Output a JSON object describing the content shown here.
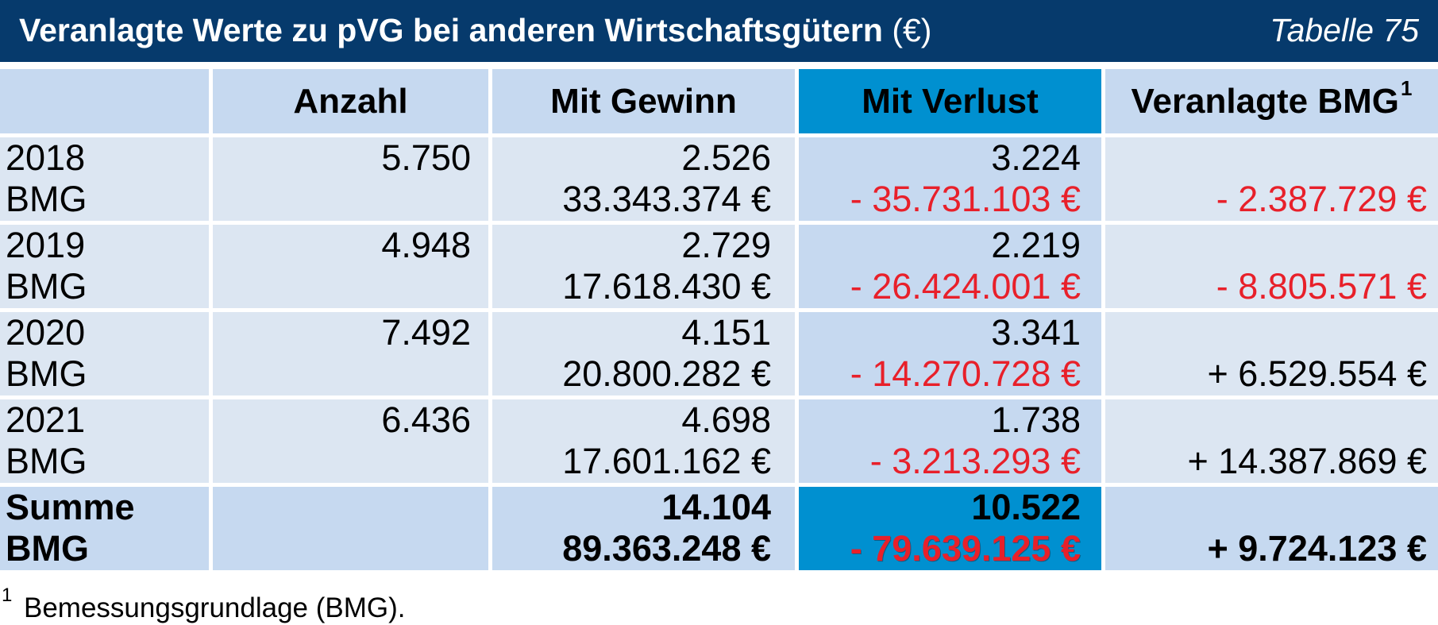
{
  "title": {
    "text": "Veranlagte Werte zu pVG bei anderen Wirtschaftsgütern",
    "unit": "(€)",
    "table_label": "Tabelle 75"
  },
  "colors": {
    "title_bar": "#063a6c",
    "header_cell": "#c6d9f0",
    "body_cell": "#dce6f2",
    "highlight": "#0090d0",
    "negative": "#e8202a"
  },
  "table": {
    "headers": {
      "anzahl": "Anzahl",
      "gewinn": "Mit Gewinn",
      "verlust": "Mit Verlust",
      "bmg": "Veranlagte BMG",
      "bmg_footnote_marker": "1"
    },
    "rows": [
      {
        "year": "2018",
        "sub_label": "BMG",
        "anzahl": "5.750",
        "gewinn_count": "2.526",
        "gewinn_bmg": "33.343.374 €",
        "verlust_count": "3.224",
        "verlust_bmg": "- 35.731.103 €",
        "veranlagte_bmg": "- 2.387.729 €"
      },
      {
        "year": "2019",
        "sub_label": "BMG",
        "anzahl": "4.948",
        "gewinn_count": "2.729",
        "gewinn_bmg": "17.618.430 €",
        "verlust_count": "2.219",
        "verlust_bmg": "- 26.424.001 €",
        "veranlagte_bmg": "- 8.805.571 €"
      },
      {
        "year": "2020",
        "sub_label": "BMG",
        "anzahl": "7.492",
        "gewinn_count": "4.151",
        "gewinn_bmg": "20.800.282 €",
        "verlust_count": "3.341",
        "verlust_bmg": "- 14.270.728 €",
        "veranlagte_bmg": "+ 6.529.554 €"
      },
      {
        "year": "2021",
        "sub_label": "BMG",
        "anzahl": "6.436",
        "gewinn_count": "4.698",
        "gewinn_bmg": "17.601.162 €",
        "verlust_count": "1.738",
        "verlust_bmg": "- 3.213.293 €",
        "veranlagte_bmg": "+ 14.387.869 €"
      }
    ],
    "total": {
      "label": "Summe",
      "sub_label": "BMG",
      "gewinn_count": "14.104",
      "gewinn_bmg": "89.363.248 €",
      "verlust_count": "10.522",
      "verlust_bmg": "- 79.639.125 €",
      "veranlagte_bmg": "+ 9.724.123 €"
    }
  },
  "footnote": {
    "marker": "1",
    "text": "Bemessungsgrundlage (BMG)."
  }
}
